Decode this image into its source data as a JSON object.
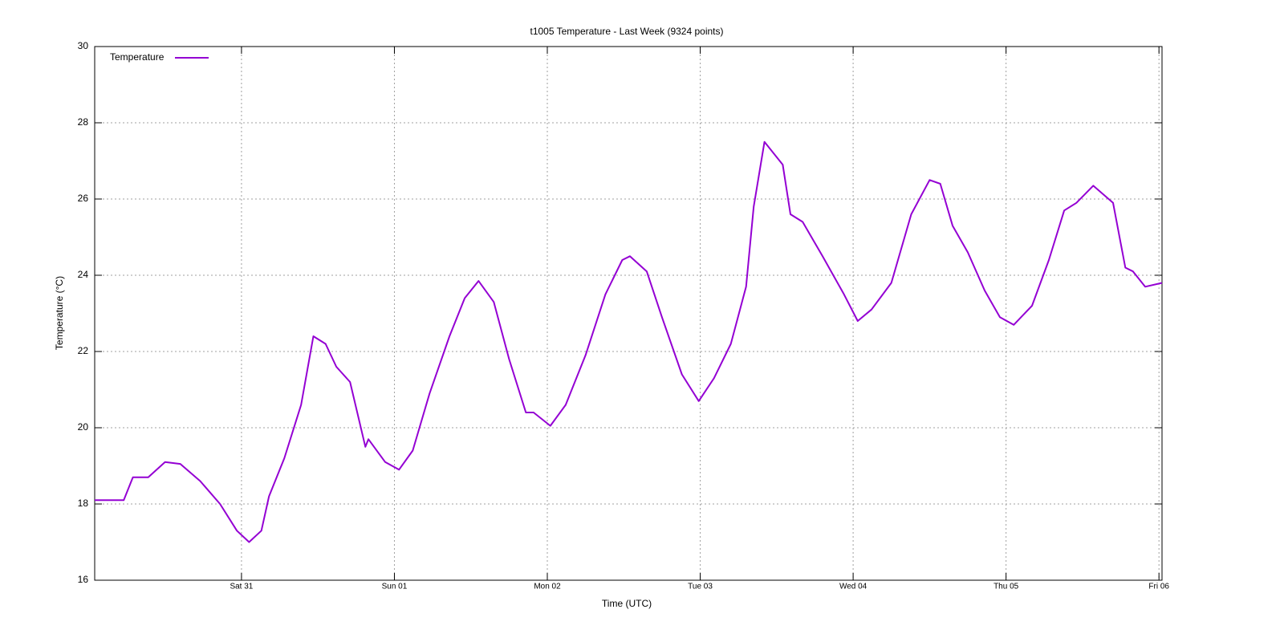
{
  "chart_data": {
    "type": "line",
    "title": "t1005 Temperature - Last Week (9324 points)",
    "x_label": "Time (UTC)",
    "y_label": "Temperature (°C)",
    "x": [
      0.04,
      0.23,
      0.29,
      0.39,
      0.5,
      0.6,
      0.73,
      0.86,
      0.97,
      1.05,
      1.13,
      1.18,
      1.28,
      1.39,
      1.47,
      1.55,
      1.62,
      1.71,
      1.81,
      1.83,
      1.94,
      2.03,
      2.12,
      2.23,
      2.36,
      2.46,
      2.55,
      2.65,
      2.75,
      2.86,
      2.91,
      3.02,
      3.12,
      3.25,
      3.38,
      3.49,
      3.54,
      3.65,
      3.75,
      3.88,
      3.99,
      4.09,
      4.2,
      4.3,
      4.35,
      4.42,
      4.54,
      4.59,
      4.67,
      4.8,
      4.94,
      5.03,
      5.12,
      5.25,
      5.38,
      5.5,
      5.57,
      5.65,
      5.75,
      5.86,
      5.96,
      6.05,
      6.17,
      6.28,
      6.38,
      6.46,
      6.57,
      6.7,
      6.78,
      6.83,
      6.91,
      7.02
    ],
    "series": [
      {
        "name": "Temperature",
        "color": "#9400d3",
        "values": [
          18.1,
          18.1,
          18.7,
          18.7,
          19.1,
          19.05,
          18.6,
          18.0,
          17.3,
          17.0,
          17.3,
          18.2,
          19.2,
          20.6,
          22.4,
          22.2,
          21.6,
          21.2,
          19.5,
          19.7,
          19.1,
          18.9,
          19.4,
          20.9,
          22.4,
          23.4,
          23.85,
          23.3,
          21.8,
          20.4,
          20.4,
          20.05,
          20.6,
          21.9,
          23.5,
          24.4,
          24.5,
          24.1,
          22.9,
          21.4,
          20.7,
          21.3,
          22.2,
          23.7,
          25.8,
          27.5,
          26.9,
          25.6,
          25.4,
          24.5,
          23.5,
          22.8,
          23.1,
          23.8,
          25.6,
          26.5,
          26.4,
          25.3,
          24.6,
          23.6,
          22.9,
          22.7,
          23.2,
          24.4,
          25.7,
          25.9,
          26.35,
          25.9,
          24.2,
          24.1,
          23.7,
          23.8
        ]
      }
    ],
    "xlim": [
      0.04,
      7.02
    ],
    "xticks": [
      {
        "value": 1,
        "label": "Sat 31"
      },
      {
        "value": 2,
        "label": "Sun 01"
      },
      {
        "value": 3,
        "label": "Mon 02"
      },
      {
        "value": 4,
        "label": "Tue 03"
      },
      {
        "value": 5,
        "label": "Wed 04"
      },
      {
        "value": 6,
        "label": "Thu 05"
      },
      {
        "value": 7,
        "label": "Fri 06"
      }
    ],
    "ylim": [
      16,
      30
    ],
    "yticks": [
      16,
      18,
      20,
      22,
      24,
      26,
      28,
      30
    ],
    "grid": true,
    "legend": "top-left"
  }
}
